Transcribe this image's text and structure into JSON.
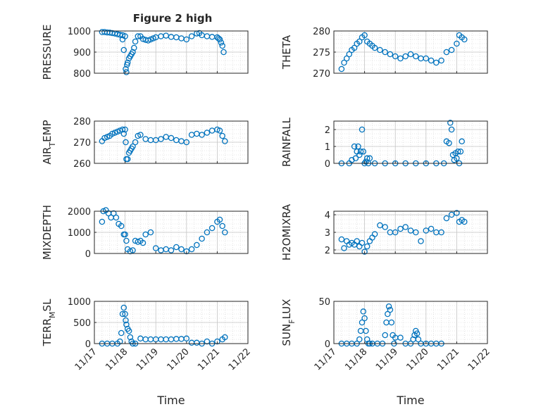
{
  "figure": {
    "title": "Figure 2 high",
    "marker_color": "#0072bd"
  },
  "chart_data": [
    {
      "type": "scatter",
      "id": "pressure",
      "ylabel": "PRESSURE",
      "xlabel": "",
      "ylim": [
        800,
        1000
      ],
      "yticks": [
        800,
        900,
        1000
      ],
      "yticklabels": [
        "800",
        "900",
        "1000"
      ],
      "xlim": [
        "2015-11-17",
        "2015-11-22"
      ],
      "xticks": [
        "11/17",
        "11/18",
        "11/19",
        "11/20",
        "11/21",
        "11/22"
      ],
      "x": [
        "11/17 06:00",
        "11/17 08:00",
        "11/17 10:00",
        "11/17 12:00",
        "11/17 14:00",
        "11/17 16:00",
        "11/17 18:00",
        "11/17 20:00",
        "11/17 22:00",
        "11/18 00:00",
        "11/17 22:00",
        "11/17 23:00",
        "11/18 00:30",
        "11/18 01:00",
        "11/18 01:30",
        "11/18 02:00",
        "11/18 03:00",
        "11/18 04:00",
        "11/18 05:00",
        "11/18 06:00",
        "11/18 07:00",
        "11/18 08:00",
        "11/18 10:00",
        "11/18 12:00",
        "11/18 14:00",
        "11/18 16:00",
        "11/18 18:00",
        "11/18 20:00",
        "11/18 22:00",
        "11/19 00:00",
        "11/19 04:00",
        "11/19 08:00",
        "11/19 12:00",
        "11/19 16:00",
        "11/19 20:00",
        "11/20 00:00",
        "11/20 04:00",
        "11/20 08:00",
        "11/20 10:00",
        "11/20 12:00",
        "11/20 16:00",
        "11/20 20:00",
        "11/21 00:00",
        "11/21 01:00",
        "11/21 02:00",
        "11/21 03:00",
        "11/21 04:00",
        "11/21 05:00"
      ],
      "values": [
        995,
        995,
        993,
        992,
        990,
        988,
        985,
        982,
        980,
        975,
        960,
        910,
        820,
        805,
        840,
        850,
        870,
        880,
        890,
        900,
        920,
        950,
        975,
        975,
        962,
        958,
        955,
        960,
        965,
        970,
        975,
        978,
        972,
        970,
        965,
        960,
        975,
        988,
        990,
        980,
        975,
        972,
        970,
        965,
        960,
        945,
        930,
        900
      ]
    },
    {
      "type": "scatter",
      "id": "theta",
      "ylabel": "THETA",
      "xlabel": "",
      "ylim": [
        270,
        280
      ],
      "yticks": [
        270,
        275,
        280
      ],
      "yticklabels": [
        "270",
        "275",
        "280"
      ],
      "xlim": [
        "2015-11-17",
        "2015-11-22"
      ],
      "xticks": [
        "11/17",
        "11/18",
        "11/19",
        "11/20",
        "11/21",
        "11/22"
      ],
      "x": [
        "11/17 06:00",
        "11/17 08:00",
        "11/17 10:00",
        "11/17 12:00",
        "11/17 14:00",
        "11/17 16:00",
        "11/17 18:00",
        "11/17 20:00",
        "11/17 22:00",
        "11/18 00:00",
        "11/18 02:00",
        "11/18 04:00",
        "11/18 06:00",
        "11/18 08:00",
        "11/18 12:00",
        "11/18 16:00",
        "11/18 20:00",
        "11/19 00:00",
        "11/19 04:00",
        "11/19 08:00",
        "11/19 12:00",
        "11/19 16:00",
        "11/19 20:00",
        "11/20 00:00",
        "11/20 04:00",
        "11/20 08:00",
        "11/20 12:00",
        "11/20 16:00",
        "11/20 20:00",
        "11/21 00:00",
        "11/21 02:00",
        "11/21 04:00",
        "11/21 06:00"
      ],
      "values": [
        271,
        272.5,
        273.5,
        274.5,
        275.5,
        276,
        277,
        277.5,
        278.5,
        279,
        277.5,
        277,
        276.5,
        276,
        275.5,
        275,
        274.5,
        274,
        273.5,
        274,
        274.5,
        274,
        273.5,
        273.5,
        273,
        272.5,
        273,
        275,
        275.5,
        277,
        279,
        278.5,
        278
      ]
    },
    {
      "type": "scatter",
      "id": "air_temp",
      "ylabel": "AIR_TEMP",
      "ylabel_main": "AIR",
      "ylabel_sub": "T",
      "ylabel_rest": "EMP",
      "xlabel": "",
      "ylim": [
        260,
        280
      ],
      "yticks": [
        260,
        270,
        280
      ],
      "yticklabels": [
        "260",
        "270",
        "280"
      ],
      "xlim": [
        "2015-11-17",
        "2015-11-22"
      ],
      "xticks": [
        "11/17",
        "11/18",
        "11/19",
        "11/20",
        "11/21",
        "11/22"
      ],
      "x": [
        "11/17 06:00",
        "11/17 08:00",
        "11/17 10:00",
        "11/17 12:00",
        "11/17 14:00",
        "11/17 16:00",
        "11/17 18:00",
        "11/17 20:00",
        "11/17 22:00",
        "11/18 00:00",
        "11/17 23:00",
        "11/18 00:30",
        "11/18 01:00",
        "11/18 02:00",
        "11/18 03:00",
        "11/18 04:00",
        "11/18 05:00",
        "11/18 06:00",
        "11/18 08:00",
        "11/18 10:00",
        "11/18 12:00",
        "11/18 16:00",
        "11/18 20:00",
        "11/19 00:00",
        "11/19 04:00",
        "11/19 08:00",
        "11/19 12:00",
        "11/19 16:00",
        "11/19 20:00",
        "11/20 00:00",
        "11/20 04:00",
        "11/20 08:00",
        "11/20 12:00",
        "11/20 16:00",
        "11/20 20:00",
        "11/21 00:00",
        "11/21 02:00",
        "11/21 04:00",
        "11/21 06:00"
      ],
      "values": [
        270.5,
        272,
        272.5,
        273,
        274,
        274.5,
        275,
        275.5,
        276,
        276,
        274,
        270,
        262,
        262,
        265,
        266,
        267,
        268,
        270,
        273,
        273.5,
        271.5,
        271,
        271,
        271.5,
        272.5,
        272,
        271,
        270.5,
        270,
        273.5,
        274,
        273.5,
        274.5,
        275.5,
        276,
        275.5,
        273,
        270.5
      ]
    },
    {
      "type": "scatter",
      "id": "rainfall",
      "ylabel": "RAINFALL",
      "xlabel": "",
      "ylim": [
        0,
        2.5
      ],
      "yticks": [
        0,
        1,
        2
      ],
      "yticklabels": [
        "0",
        "1",
        "2"
      ],
      "xlim": [
        "2015-11-17",
        "2015-11-22"
      ],
      "xticks": [
        "11/17",
        "11/18",
        "11/19",
        "11/20",
        "11/21",
        "11/22"
      ],
      "x": [
        "11/17 06:00",
        "11/17 12:00",
        "11/17 14:00",
        "11/17 16:00",
        "11/17 17:00",
        "11/17 18:00",
        "11/17 19:00",
        "11/17 20:00",
        "11/17 21:00",
        "11/17 22:00",
        "11/17 23:00",
        "11/18 00:00",
        "11/18 01:00",
        "11/18 02:00",
        "11/18 03:00",
        "11/18 04:00",
        "11/18 08:00",
        "11/18 16:00",
        "11/19 00:00",
        "11/19 08:00",
        "11/19 16:00",
        "11/20 00:00",
        "11/20 08:00",
        "11/20 14:00",
        "11/20 16:00",
        "11/20 18:00",
        "11/20 19:00",
        "11/20 20:00",
        "11/20 21:00",
        "11/20 22:00",
        "11/20 23:00",
        "11/21 00:00",
        "11/21 01:00",
        "11/21 02:00",
        "11/21 03:00",
        "11/21 04:00"
      ],
      "values": [
        0,
        0,
        0.2,
        1,
        0.3,
        0.7,
        1,
        0.5,
        0.7,
        2,
        0.7,
        0,
        0.1,
        0.3,
        0,
        0.3,
        0,
        0,
        0,
        0,
        0,
        0,
        0,
        0,
        1.3,
        1.2,
        2.4,
        2,
        0.5,
        0.2,
        0.6,
        0.3,
        0.7,
        0,
        0.7,
        1.3
      ]
    },
    {
      "type": "scatter",
      "id": "mixdepth",
      "ylabel": "MIXDEPTH",
      "xlabel": "",
      "ylim": [
        0,
        2000
      ],
      "yticks": [
        0,
        1000,
        2000
      ],
      "yticklabels": [
        "0",
        "1000",
        "2000"
      ],
      "xlim": [
        "2015-11-17",
        "2015-11-22"
      ],
      "xticks": [
        "11/17",
        "11/18",
        "11/19",
        "11/20",
        "11/21",
        "11/22"
      ],
      "x": [
        "11/17 06:00",
        "11/17 07:00",
        "11/17 09:00",
        "11/17 11:00",
        "11/17 13:00",
        "11/17 15:00",
        "11/17 17:00",
        "11/17 19:00",
        "11/17 21:00",
        "11/17 23:00",
        "11/18 00:00",
        "11/18 01:00",
        "11/18 02:00",
        "11/18 04:00",
        "11/18 06:00",
        "11/18 08:00",
        "11/18 10:00",
        "11/18 12:00",
        "11/18 14:00",
        "11/18 16:00",
        "11/18 20:00",
        "11/19 00:00",
        "11/19 04:00",
        "11/19 08:00",
        "11/19 12:00",
        "11/19 16:00",
        "11/19 20:00",
        "11/20 00:00",
        "11/20 04:00",
        "11/20 08:00",
        "11/20 12:00",
        "11/20 16:00",
        "11/20 20:00",
        "11/21 00:00",
        "11/21 02:00",
        "11/21 04:00",
        "11/21 06:00"
      ],
      "values": [
        1500,
        2000,
        2050,
        1900,
        1700,
        1900,
        1700,
        1400,
        1300,
        900,
        900,
        600,
        200,
        100,
        150,
        600,
        550,
        600,
        500,
        900,
        1000,
        250,
        150,
        200,
        150,
        300,
        200,
        100,
        200,
        400,
        700,
        1000,
        1200,
        1500,
        1600,
        1300,
        1000
      ]
    },
    {
      "type": "scatter",
      "id": "h2omixra",
      "ylabel": "H2OMIXRA",
      "xlabel": "",
      "ylim": [
        1.8,
        4.2
      ],
      "yticks": [
        2,
        3,
        4
      ],
      "yticklabels": [
        "2",
        "3",
        "4"
      ],
      "xlim": [
        "2015-11-17",
        "2015-11-22"
      ],
      "xticks": [
        "11/17",
        "11/18",
        "11/19",
        "11/20",
        "11/21",
        "11/22"
      ],
      "x": [
        "11/17 06:00",
        "11/17 08:00",
        "11/17 10:00",
        "11/17 12:00",
        "11/17 14:00",
        "11/17 16:00",
        "11/17 18:00",
        "11/17 20:00",
        "11/17 22:00",
        "11/18 00:00",
        "11/18 02:00",
        "11/18 04:00",
        "11/18 06:00",
        "11/18 08:00",
        "11/18 12:00",
        "11/18 16:00",
        "11/18 20:00",
        "11/19 00:00",
        "11/19 04:00",
        "11/19 08:00",
        "11/19 12:00",
        "11/19 16:00",
        "11/19 20:00",
        "11/20 00:00",
        "11/20 04:00",
        "11/20 08:00",
        "11/20 12:00",
        "11/20 16:00",
        "11/20 20:00",
        "11/21 00:00",
        "11/21 02:00",
        "11/21 04:00",
        "11/21 06:00"
      ],
      "values": [
        2.6,
        2.1,
        2.5,
        2.3,
        2.4,
        2.3,
        2.5,
        2.2,
        2.4,
        1.9,
        2.2,
        2.5,
        2.7,
        2.9,
        3.4,
        3.3,
        3,
        3,
        3.2,
        3.3,
        3.1,
        3,
        2.5,
        3.1,
        3.2,
        3,
        3,
        3.8,
        4,
        4.1,
        3.6,
        3.7,
        3.6
      ]
    },
    {
      "type": "scatter",
      "id": "terr_msl",
      "ylabel": "TERR_MSL",
      "ylabel_main": "TERR",
      "ylabel_sub": "M",
      "ylabel_rest": "SL",
      "xlabel": "Time",
      "ylim": [
        0,
        1000
      ],
      "yticks": [
        0,
        500,
        1000
      ],
      "yticklabels": [
        "0",
        "500",
        "1000"
      ],
      "xlim": [
        "2015-11-17",
        "2015-11-22"
      ],
      "xticks": [
        "11/17",
        "11/18",
        "11/19",
        "11/20",
        "11/21",
        "11/22"
      ],
      "x": [
        "11/17 06:00",
        "11/17 10:00",
        "11/17 14:00",
        "11/17 18:00",
        "11/17 20:00",
        "11/17 21:00",
        "11/17 22:00",
        "11/17 23:00",
        "11/18 00:00",
        "11/18 00:30",
        "11/18 01:00",
        "11/18 02:00",
        "11/18 03:00",
        "11/18 04:00",
        "11/18 05:00",
        "11/18 06:00",
        "11/18 08:00",
        "11/18 12:00",
        "11/18 16:00",
        "11/18 20:00",
        "11/19 00:00",
        "11/19 04:00",
        "11/19 08:00",
        "11/19 12:00",
        "11/19 16:00",
        "11/19 20:00",
        "11/20 00:00",
        "11/20 04:00",
        "11/20 08:00",
        "11/20 12:00",
        "11/20 16:00",
        "11/20 20:00",
        "11/21 00:00",
        "11/21 04:00",
        "11/21 06:00"
      ],
      "values": [
        0,
        0,
        0,
        0,
        50,
        250,
        700,
        850,
        700,
        550,
        450,
        350,
        300,
        150,
        50,
        0,
        0,
        120,
        100,
        100,
        100,
        100,
        100,
        100,
        110,
        110,
        120,
        20,
        20,
        0,
        50,
        0,
        50,
        100,
        150
      ]
    },
    {
      "type": "scatter",
      "id": "sun_flux",
      "ylabel": "SUN_FLUX",
      "ylabel_main": "SUN",
      "ylabel_sub": "F",
      "ylabel_rest": "LUX",
      "xlabel": "Time",
      "ylim": [
        0,
        50
      ],
      "yticks": [
        0,
        50
      ],
      "yticklabels": [
        "0",
        "50"
      ],
      "xlim": [
        "2015-11-17",
        "2015-11-22"
      ],
      "xticks": [
        "11/17",
        "11/18",
        "11/19",
        "11/20",
        "11/21",
        "11/22"
      ],
      "x": [
        "11/17 06:00",
        "11/17 10:00",
        "11/17 14:00",
        "11/17 18:00",
        "11/17 20:00",
        "11/17 21:00",
        "11/17 22:00",
        "11/17 23:00",
        "11/18 00:00",
        "11/18 01:00",
        "11/18 02:00",
        "11/18 03:00",
        "11/18 04:00",
        "11/18 06:00",
        "11/18 10:00",
        "11/18 14:00",
        "11/18 16:00",
        "11/18 17:00",
        "11/18 18:00",
        "11/18 19:00",
        "11/18 20:00",
        "11/18 21:00",
        "11/18 22:00",
        "11/18 23:00",
        "11/19 00:00",
        "11/19 04:00",
        "11/19 08:00",
        "11/19 12:00",
        "11/19 14:00",
        "11/19 15:00",
        "11/19 16:00",
        "11/19 17:00",
        "11/19 18:00",
        "11/19 20:00",
        "11/20 00:00",
        "11/20 04:00",
        "11/20 08:00",
        "11/20 12:00"
      ],
      "values": [
        0,
        0,
        0,
        0,
        5,
        15,
        25,
        38,
        30,
        15,
        5,
        0,
        0,
        0,
        0,
        0,
        10,
        25,
        35,
        44,
        40,
        25,
        10,
        0,
        7,
        7,
        0,
        0,
        5,
        10,
        15,
        12,
        5,
        0,
        0,
        0,
        0,
        0
      ]
    }
  ]
}
